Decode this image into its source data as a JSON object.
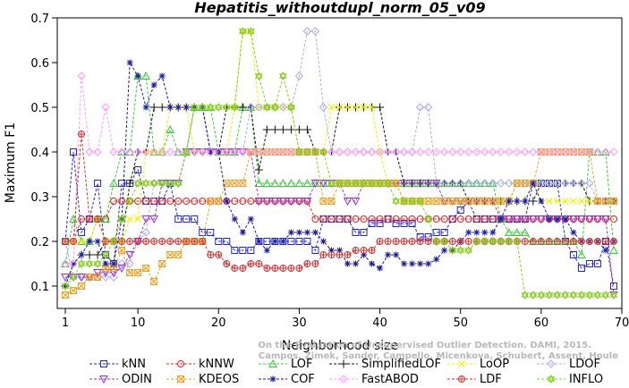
{
  "chart_data": {
    "type": "line",
    "title": "Hepatitis_withoutdupl_norm_05_v09",
    "xlabel": "Neighborhood size",
    "ylabel": "Maximum F1",
    "xlim": [
      0,
      70
    ],
    "ylim": [
      0.05,
      0.7
    ],
    "xticks": [
      1,
      10,
      20,
      30,
      40,
      50,
      60,
      70
    ],
    "yticks": [
      0.1,
      0.2,
      0.3,
      0.4,
      0.5,
      0.6,
      0.7
    ],
    "legend_position": "bottom",
    "watermark": [
      "Campos, Zimek, Sander, Campello, Micenkova, Schubert, Assent, Houle",
      "On the Evaluation of Unsupervised Outlier Detection. DAMI, 2015."
    ],
    "series": [
      {
        "name": "kNN",
        "color": "#2222cc",
        "marker": "square",
        "y": [
          0.2,
          0.4,
          0.22,
          0.25,
          0.33,
          0.17,
          0.15,
          0.33,
          0.33,
          0.36,
          0.29,
          0.29,
          0.29,
          0.33,
          0.25,
          0.25,
          0.25,
          0.22,
          0.22,
          0.2,
          0.2,
          0.18,
          0.18,
          0.18,
          0.2,
          0.2,
          0.2,
          0.2,
          0.2,
          0.2,
          0.2,
          0.18,
          0.25,
          0.25,
          0.25,
          0.25,
          0.22,
          0.22,
          0.24,
          0.24,
          0.25,
          0.24,
          0.24,
          0.24,
          0.21,
          0.21,
          0.22,
          0.22,
          0.25,
          0.27,
          0.29,
          0.25,
          0.25,
          0.25,
          0.25,
          0.25,
          0.25,
          0.25,
          0.33,
          0.33,
          0.33,
          0.33,
          0.2,
          0.17,
          0.14,
          0.15,
          0.15,
          0.2,
          0.1
        ]
      },
      {
        "name": "kNNW",
        "color": "#dd2222",
        "marker": "circle",
        "y": [
          0.2,
          0.2,
          0.25,
          0.25,
          0.25,
          0.25,
          0.29,
          0.29,
          0.29,
          0.29,
          0.29,
          0.29,
          0.29,
          0.29,
          0.29,
          0.29,
          0.29,
          0.29,
          0.29,
          0.29,
          0.29,
          0.29,
          0.29,
          0.29,
          0.29,
          0.29,
          0.29,
          0.29,
          0.29,
          0.29,
          0.29,
          0.25,
          0.25,
          0.25,
          0.25,
          0.25,
          0.25,
          0.25,
          0.25,
          0.25,
          0.25,
          0.25,
          0.25,
          0.25,
          0.25,
          0.25,
          0.25,
          0.25,
          0.25,
          0.25,
          0.25,
          0.25,
          0.25,
          0.25,
          0.25,
          0.25,
          0.25,
          0.25,
          0.25,
          0.25,
          0.25,
          0.25,
          0.25,
          0.25,
          0.25,
          0.25,
          0.25,
          0.25,
          0.25
        ]
      },
      {
        "name": "LOF",
        "color": "#33cc33",
        "marker": "triangle",
        "y": [
          0.15,
          0.25,
          0.2,
          0.2,
          0.25,
          0.25,
          0.33,
          0.4,
          0.4,
          0.57,
          0.57,
          0.4,
          0.4,
          0.45,
          0.4,
          0.4,
          0.5,
          0.5,
          0.5,
          0.4,
          0.4,
          0.4,
          0.5,
          0.5,
          0.33,
          0.33,
          0.33,
          0.33,
          0.33,
          0.33,
          0.33,
          0.33,
          0.33,
          0.33,
          0.33,
          0.33,
          0.33,
          0.33,
          0.33,
          0.33,
          0.33,
          0.33,
          0.33,
          0.33,
          0.33,
          0.33,
          0.33,
          0.33,
          0.33,
          0.33,
          0.33,
          0.33,
          0.33,
          0.33,
          0.25,
          0.22,
          0.22,
          0.22,
          0.2,
          0.2,
          0.2,
          0.2,
          0.2,
          0.2,
          0.17,
          0.4,
          0.4,
          0.4,
          0.18
        ]
      },
      {
        "name": "SimplifiedLOF",
        "color": "#111111",
        "marker": "plus",
        "y": [
          0.1,
          0.15,
          0.17,
          0.17,
          0.17,
          0.2,
          0.2,
          0.2,
          0.33,
          0.4,
          0.4,
          0.5,
          0.5,
          0.5,
          0.5,
          0.5,
          0.5,
          0.5,
          0.4,
          0.4,
          0.5,
          0.5,
          0.5,
          0.5,
          0.36,
          0.45,
          0.45,
          0.45,
          0.45,
          0.45,
          0.45,
          0.4,
          0.4,
          0.4,
          0.5,
          0.5,
          0.5,
          0.5,
          0.5,
          0.5,
          0.4,
          0.4,
          0.33,
          0.33,
          0.33,
          0.33,
          0.33,
          0.33,
          0.33,
          0.33,
          0.29,
          0.29,
          0.29,
          0.29,
          0.29,
          0.29,
          0.29,
          0.29,
          0.29,
          0.33,
          0.33,
          0.33,
          0.33,
          0.33,
          0.33,
          0.29,
          0.29,
          0.29,
          0.29
        ]
      },
      {
        "name": "LoOP",
        "color": "#eeee00",
        "marker": "x",
        "y": [
          0.2,
          0.2,
          0.2,
          0.2,
          0.25,
          0.2,
          0.2,
          0.2,
          0.25,
          0.25,
          0.4,
          0.4,
          0.4,
          0.5,
          0.5,
          0.5,
          0.4,
          0.4,
          0.4,
          0.4,
          0.4,
          0.5,
          0.67,
          0.67,
          0.5,
          0.5,
          0.5,
          0.5,
          0.5,
          0.4,
          0.4,
          0.4,
          0.4,
          0.5,
          0.5,
          0.5,
          0.5,
          0.5,
          0.5,
          0.4,
          0.33,
          0.33,
          0.29,
          0.29,
          0.29,
          0.29,
          0.29,
          0.29,
          0.29,
          0.29,
          0.29,
          0.29,
          0.29,
          0.29,
          0.29,
          0.29,
          0.33,
          0.33,
          0.33,
          0.29,
          0.29,
          0.29,
          0.29,
          0.29,
          0.29,
          0.29,
          0.29,
          0.29,
          0.29
        ]
      },
      {
        "name": "LDOF",
        "color": "#aaaaee",
        "marker": "diamond",
        "y": [
          0.2,
          0.12,
          0.12,
          0.12,
          0.12,
          0.12,
          0.12,
          0.15,
          0.15,
          0.2,
          0.22,
          0.33,
          0.33,
          0.33,
          0.33,
          0.4,
          0.4,
          0.4,
          0.4,
          0.4,
          0.4,
          0.4,
          0.4,
          0.5,
          0.5,
          0.5,
          0.5,
          0.5,
          0.5,
          0.57,
          0.67,
          0.67,
          0.5,
          0.4,
          0.4,
          0.4,
          0.4,
          0.4,
          0.4,
          0.4,
          0.4,
          0.4,
          0.4,
          0.4,
          0.5,
          0.5,
          0.33,
          0.33,
          0.33,
          0.33,
          0.33,
          0.33,
          0.33,
          0.33,
          0.33,
          0.33,
          0.33,
          0.33,
          0.33,
          0.33,
          0.33,
          0.33,
          0.33,
          0.33,
          0.33,
          0.33,
          0.29,
          0.29,
          0.29
        ]
      },
      {
        "name": "ODIN",
        "color": "#9933cc",
        "marker": "triangle-down",
        "y": [
          0.12,
          0.12,
          0.12,
          0.12,
          0.13,
          0.13,
          0.13,
          0.14,
          0.17,
          0.2,
          0.25,
          0.25,
          0.33,
          0.33,
          0.33,
          0.4,
          0.4,
          0.4,
          0.4,
          0.4,
          0.4,
          0.4,
          0.4,
          0.4,
          0.29,
          0.29,
          0.29,
          0.29,
          0.29,
          0.29,
          0.29,
          0.33,
          0.33,
          0.33,
          0.33,
          0.29,
          0.29,
          0.33,
          0.33,
          0.33,
          0.33,
          0.33,
          0.33,
          0.33,
          0.33,
          0.33,
          0.33,
          0.29,
          0.29,
          0.29,
          0.29,
          0.29,
          0.29,
          0.29,
          0.25,
          0.25,
          0.25,
          0.25,
          0.25,
          0.25,
          0.25,
          0.25,
          0.25,
          0.25,
          0.25,
          0.25,
          0.25,
          0.25,
          0.08
        ]
      },
      {
        "name": "KDEOS",
        "color": "#f0a020",
        "marker": "square-x",
        "y": [
          0.08,
          0.09,
          0.1,
          0.12,
          0.12,
          0.14,
          0.14,
          0.18,
          0.13,
          0.13,
          0.14,
          0.11,
          0.15,
          0.17,
          0.17,
          0.2,
          0.2,
          0.2,
          0.29,
          0.29,
          0.33,
          0.33,
          0.33,
          0.4,
          0.4,
          0.4,
          0.4,
          0.4,
          0.4,
          0.4,
          0.4,
          0.4,
          0.29,
          0.29,
          0.33,
          0.33,
          0.33,
          0.33,
          0.33,
          0.33,
          0.33,
          0.33,
          0.29,
          0.29,
          0.29,
          0.29,
          0.29,
          0.29,
          0.29,
          0.29,
          0.29,
          0.29,
          0.29,
          0.29,
          0.29,
          0.29,
          0.33,
          0.33,
          0.33,
          0.4,
          0.4,
          0.4,
          0.4,
          0.4,
          0.4,
          0.4,
          0.29,
          0.29,
          0.29
        ]
      },
      {
        "name": "COF",
        "color": "#1a1a99",
        "marker": "star",
        "y": [
          0.1,
          0.15,
          0.17,
          0.2,
          0.2,
          0.15,
          0.15,
          0.25,
          0.6,
          0.57,
          0.5,
          0.55,
          0.57,
          0.5,
          0.5,
          0.5,
          0.5,
          0.5,
          0.4,
          0.4,
          0.29,
          0.25,
          0.22,
          0.25,
          0.2,
          0.18,
          0.2,
          0.2,
          0.22,
          0.22,
          0.22,
          0.22,
          0.2,
          0.18,
          0.18,
          0.15,
          0.15,
          0.17,
          0.15,
          0.14,
          0.17,
          0.17,
          0.15,
          0.15,
          0.15,
          0.15,
          0.16,
          0.18,
          0.18,
          0.2,
          0.22,
          0.22,
          0.22,
          0.22,
          0.25,
          0.29,
          0.29,
          0.29,
          0.33,
          0.29,
          0.25,
          0.25,
          0.25,
          0.22,
          0.2,
          0.2,
          0.2,
          0.18,
          0.2
        ]
      },
      {
        "name": "FastABOD",
        "color": "#ff99ff",
        "marker": "diamond",
        "y": [
          0.15,
          0.15,
          0.57,
          0.4,
          0.4,
          0.5,
          0.4,
          0.4,
          0.4,
          0.4,
          0.4,
          0.4,
          0.4,
          0.4,
          0.4,
          0.4,
          0.4,
          0.4,
          0.4,
          0.4,
          0.4,
          0.4,
          0.4,
          0.4,
          0.4,
          0.4,
          0.4,
          0.4,
          0.4,
          0.4,
          0.4,
          0.4,
          0.4,
          0.4,
          0.4,
          0.4,
          0.4,
          0.4,
          0.4,
          0.4,
          0.4,
          0.4,
          0.4,
          0.4,
          0.4,
          0.4,
          0.4,
          0.4,
          0.4,
          0.4,
          0.4,
          0.4,
          0.4,
          0.4,
          0.4,
          0.4,
          0.4,
          0.4,
          0.4,
          0.4,
          0.4,
          0.4,
          0.4,
          0.4,
          0.4,
          0.4,
          0.4,
          0.4,
          0.4
        ]
      },
      {
        "name": "LDF",
        "color": "#cc3333",
        "marker": "circle-plus",
        "y": [
          0.2,
          0.2,
          0.44,
          0.25,
          0.25,
          0.2,
          0.2,
          0.2,
          0.2,
          0.2,
          0.2,
          0.2,
          0.2,
          0.2,
          0.2,
          0.2,
          0.2,
          0.2,
          0.17,
          0.17,
          0.15,
          0.14,
          0.14,
          0.15,
          0.15,
          0.14,
          0.14,
          0.14,
          0.14,
          0.14,
          0.15,
          0.15,
          0.17,
          0.17,
          0.17,
          0.17,
          0.18,
          0.18,
          0.18,
          0.2,
          0.2,
          0.2,
          0.2,
          0.2,
          0.2,
          0.2,
          0.2,
          0.2,
          0.2,
          0.2,
          0.2,
          0.2,
          0.2,
          0.2,
          0.2,
          0.2,
          0.2,
          0.2,
          0.2,
          0.2,
          0.2,
          0.2,
          0.2,
          0.2,
          0.2,
          0.2,
          0.2,
          0.2,
          0.2
        ]
      },
      {
        "name": "INFLO",
        "color": "#88cc22",
        "marker": "star-hex",
        "y": [
          0.1,
          0.12,
          0.15,
          0.15,
          0.15,
          0.17,
          0.2,
          0.25,
          0.29,
          0.33,
          0.33,
          0.33,
          0.33,
          0.33,
          0.33,
          0.4,
          0.5,
          0.5,
          0.5,
          0.5,
          0.5,
          0.5,
          0.67,
          0.67,
          0.57,
          0.5,
          0.5,
          0.57,
          0.5,
          0.4,
          0.4,
          0.4,
          0.4,
          0.33,
          0.33,
          0.33,
          0.33,
          0.33,
          0.33,
          0.33,
          0.33,
          0.29,
          0.29,
          0.29,
          0.29,
          0.25,
          0.2,
          0.2,
          0.18,
          0.18,
          0.18,
          0.2,
          0.2,
          0.2,
          0.2,
          0.2,
          0.2,
          0.08,
          0.08,
          0.08,
          0.08,
          0.08,
          0.08,
          0.08,
          0.08,
          0.08,
          0.08,
          0.08,
          0.08
        ]
      }
    ]
  }
}
